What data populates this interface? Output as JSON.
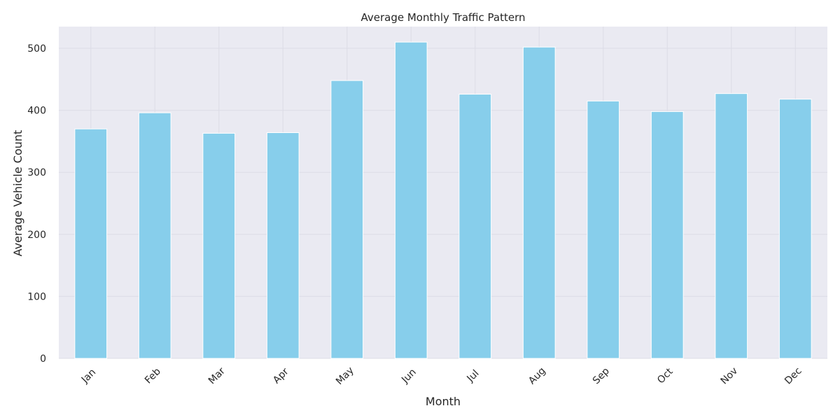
{
  "chart_data": {
    "type": "bar",
    "title": "Average Monthly Traffic Pattern",
    "xlabel": "Month",
    "ylabel": "Average Vehicle Count",
    "categories": [
      "Jan",
      "Feb",
      "Mar",
      "Apr",
      "May",
      "Jun",
      "Jul",
      "Aug",
      "Sep",
      "Oct",
      "Nov",
      "Dec"
    ],
    "values": [
      370,
      396,
      363,
      364,
      448,
      510,
      426,
      502,
      415,
      398,
      427,
      418
    ],
    "ylim": [
      0,
      535
    ],
    "yticks": [
      0,
      100,
      200,
      300,
      400,
      500
    ],
    "grid": true,
    "legend": "none",
    "x_tick_rotation_deg": 45,
    "colors": {
      "bar": "#87ceeb",
      "plot_background": "#eaeaf2",
      "grid": "#dcdce6",
      "text": "#262626"
    }
  }
}
